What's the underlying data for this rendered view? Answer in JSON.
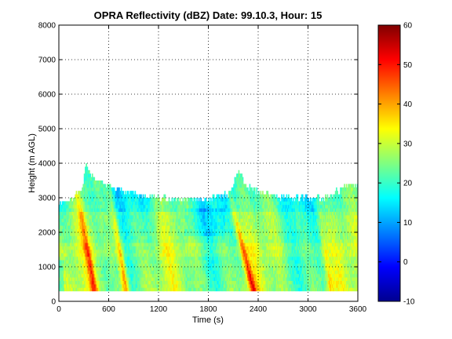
{
  "chart_data": {
    "type": "heatmap",
    "title": "OPRA Reflectivity (dBZ)  Date: 99.10.3, Hour: 15",
    "xlabel": "Time (s)",
    "ylabel": "Height (m AGL)",
    "xlim": [
      0,
      3600
    ],
    "ylim": [
      0,
      8000
    ],
    "xticks": [
      "0",
      "600",
      "1200",
      "1800",
      "2400",
      "3000",
      "3600"
    ],
    "yticks": [
      "0",
      "1000",
      "2000",
      "3000",
      "4000",
      "5000",
      "6000",
      "7000",
      "8000"
    ],
    "grid": true,
    "colormap": "jet",
    "colorbar": {
      "min": -10,
      "max": 60,
      "ticks": [
        "-10",
        "0",
        "10",
        "20",
        "30",
        "40",
        "50",
        "60"
      ]
    },
    "data_extent": {
      "time_start": 0,
      "time_end": 3600,
      "height_min": 300,
      "height_max": 4000
    },
    "echo_top_m": [
      [
        0,
        2900
      ],
      [
        100,
        2950
      ],
      [
        200,
        3100
      ],
      [
        280,
        3400
      ],
      [
        320,
        4000
      ],
      [
        380,
        3700
      ],
      [
        500,
        3500
      ],
      [
        700,
        3300
      ],
      [
        900,
        3200
      ],
      [
        1000,
        3100
      ],
      [
        1200,
        3050
      ],
      [
        1500,
        3000
      ],
      [
        1800,
        3000
      ],
      [
        2050,
        3200
      ],
      [
        2150,
        3800
      ],
      [
        2250,
        3400
      ],
      [
        2400,
        3200
      ],
      [
        2600,
        3100
      ],
      [
        2900,
        3050
      ],
      [
        3200,
        3050
      ],
      [
        3400,
        3300
      ],
      [
        3500,
        3500
      ],
      [
        3600,
        3400
      ]
    ],
    "streaks": [
      {
        "t_top": 220,
        "t_bottom": 420,
        "peak_dbz": 40
      },
      {
        "t_top": 620,
        "t_bottom": 800,
        "peak_dbz": 42
      },
      {
        "t_top": 2050,
        "t_bottom": 2330,
        "peak_dbz": 43
      },
      {
        "t_top": 3100,
        "t_bottom": 3260,
        "peak_dbz": 32
      }
    ]
  }
}
